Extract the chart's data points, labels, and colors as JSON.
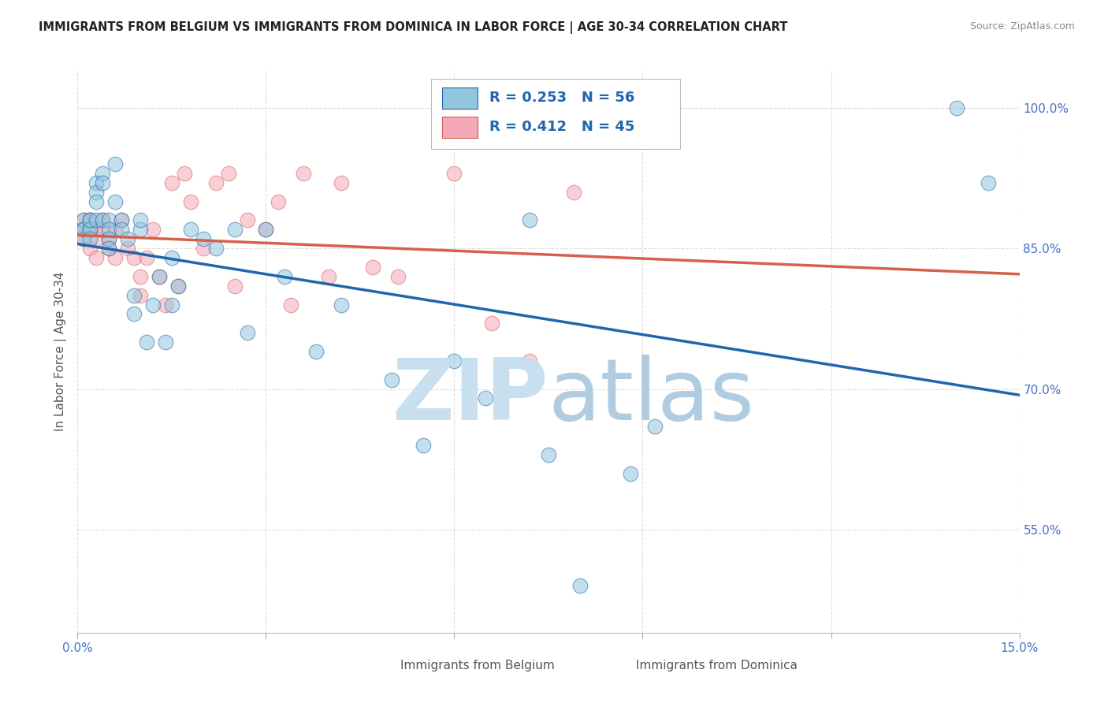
{
  "title": "IMMIGRANTS FROM BELGIUM VS IMMIGRANTS FROM DOMINICA IN LABOR FORCE | AGE 30-34 CORRELATION CHART",
  "source": "Source: ZipAtlas.com",
  "ylabel": "In Labor Force | Age 30-34",
  "xlim": [
    0.0,
    0.15
  ],
  "ylim": [
    0.44,
    1.04
  ],
  "xticks": [
    0.0,
    0.03,
    0.06,
    0.09,
    0.12,
    0.15
  ],
  "xticklabels": [
    "0.0%",
    "",
    "",
    "",
    "",
    "15.0%"
  ],
  "yticks": [
    0.55,
    0.7,
    0.85,
    1.0
  ],
  "yticklabels": [
    "55.0%",
    "70.0%",
    "85.0%",
    "100.0%"
  ],
  "belgium_R": 0.253,
  "belgium_N": 56,
  "dominica_R": 0.412,
  "dominica_N": 45,
  "blue_color": "#92c5de",
  "pink_color": "#f4a9b8",
  "line_blue": "#2166ac",
  "line_pink": "#d6604d",
  "background_color": "#ffffff",
  "grid_color": "#dddddd",
  "belgium_x": [
    0.001,
    0.001,
    0.001,
    0.001,
    0.002,
    0.002,
    0.002,
    0.002,
    0.002,
    0.003,
    0.003,
    0.003,
    0.003,
    0.004,
    0.004,
    0.004,
    0.005,
    0.005,
    0.005,
    0.005,
    0.006,
    0.006,
    0.007,
    0.007,
    0.008,
    0.009,
    0.009,
    0.01,
    0.01,
    0.011,
    0.012,
    0.013,
    0.014,
    0.015,
    0.015,
    0.016,
    0.018,
    0.02,
    0.022,
    0.025,
    0.027,
    0.03,
    0.033,
    0.038,
    0.042,
    0.05,
    0.055,
    0.06,
    0.065,
    0.072,
    0.075,
    0.08,
    0.088,
    0.092,
    0.14,
    0.145
  ],
  "belgium_y": [
    0.88,
    0.87,
    0.87,
    0.86,
    0.88,
    0.87,
    0.87,
    0.86,
    0.88,
    0.92,
    0.91,
    0.9,
    0.88,
    0.93,
    0.92,
    0.88,
    0.88,
    0.87,
    0.86,
    0.85,
    0.94,
    0.9,
    0.88,
    0.87,
    0.86,
    0.8,
    0.78,
    0.87,
    0.88,
    0.75,
    0.79,
    0.82,
    0.75,
    0.79,
    0.84,
    0.81,
    0.87,
    0.86,
    0.85,
    0.87,
    0.76,
    0.87,
    0.82,
    0.74,
    0.79,
    0.71,
    0.64,
    0.73,
    0.69,
    0.88,
    0.63,
    0.49,
    0.61,
    0.66,
    1.0,
    0.92
  ],
  "dominica_x": [
    0.001,
    0.001,
    0.001,
    0.002,
    0.002,
    0.002,
    0.003,
    0.003,
    0.003,
    0.004,
    0.004,
    0.005,
    0.005,
    0.006,
    0.006,
    0.007,
    0.008,
    0.009,
    0.01,
    0.01,
    0.011,
    0.012,
    0.013,
    0.014,
    0.015,
    0.016,
    0.017,
    0.018,
    0.02,
    0.022,
    0.024,
    0.025,
    0.027,
    0.03,
    0.032,
    0.034,
    0.036,
    0.04,
    0.042,
    0.047,
    0.051,
    0.06,
    0.066,
    0.072,
    0.079
  ],
  "dominica_y": [
    0.88,
    0.87,
    0.86,
    0.88,
    0.87,
    0.85,
    0.87,
    0.86,
    0.84,
    0.88,
    0.87,
    0.86,
    0.85,
    0.87,
    0.84,
    0.88,
    0.85,
    0.84,
    0.82,
    0.8,
    0.84,
    0.87,
    0.82,
    0.79,
    0.92,
    0.81,
    0.93,
    0.9,
    0.85,
    0.92,
    0.93,
    0.81,
    0.88,
    0.87,
    0.9,
    0.79,
    0.93,
    0.82,
    0.92,
    0.83,
    0.82,
    0.93,
    0.77,
    0.73,
    0.91
  ],
  "watermark_zip_color": "#c8dff0",
  "watermark_atlas_color": "#b0cce0"
}
